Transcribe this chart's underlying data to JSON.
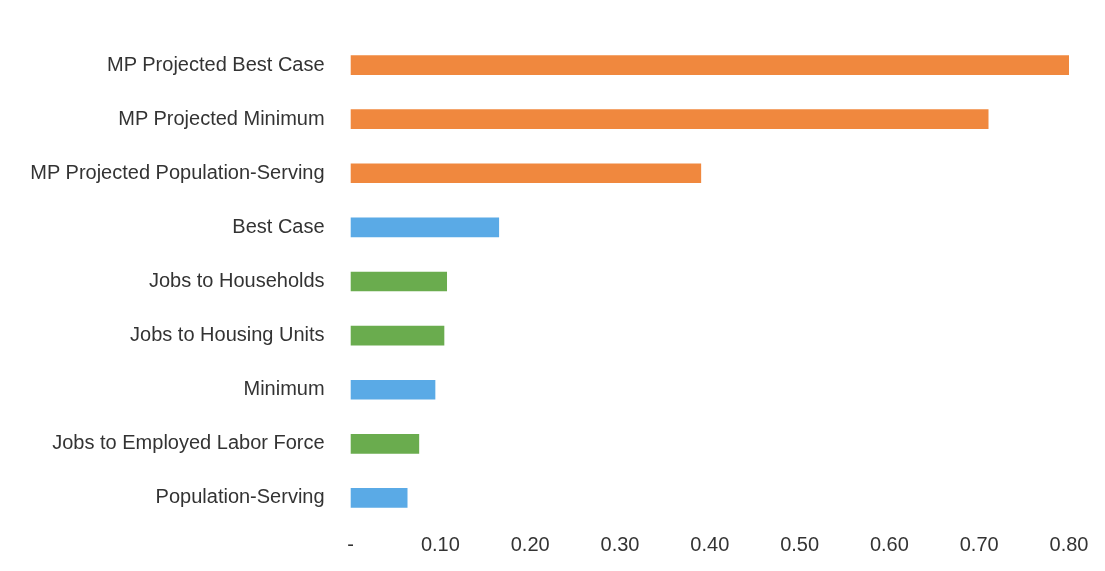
{
  "chart_data": {
    "type": "bar",
    "orientation": "horizontal",
    "categories": [
      "MP Projected Best Case",
      "MP Projected Minimum",
      "MP Projected Population-Serving",
      "Best Case",
      "Jobs to Households",
      "Jobs to Housing Units",
      "Minimum",
      "Jobs to Employed Labor Force",
      "Population-Serving"
    ],
    "values": [
      0.8,
      0.71,
      0.39,
      0.165,
      0.107,
      0.104,
      0.094,
      0.076,
      0.063
    ],
    "colors": [
      "#f0883e",
      "#f0883e",
      "#f0883e",
      "#5aaae6",
      "#6aac4e",
      "#6aac4e",
      "#5aaae6",
      "#6aac4e",
      "#5aaae6"
    ],
    "xlim": [
      0,
      0.8
    ],
    "xticks": [
      {
        "value": 0,
        "label": "-"
      },
      {
        "value": 0.1,
        "label": "0.10"
      },
      {
        "value": 0.2,
        "label": "0.20"
      },
      {
        "value": 0.3,
        "label": "0.30"
      },
      {
        "value": 0.4,
        "label": "0.40"
      },
      {
        "value": 0.5,
        "label": "0.50"
      },
      {
        "value": 0.6,
        "label": "0.60"
      },
      {
        "value": 0.7,
        "label": "0.70"
      },
      {
        "value": 0.8,
        "label": "0.80"
      }
    ],
    "grid": false,
    "legend": false
  }
}
